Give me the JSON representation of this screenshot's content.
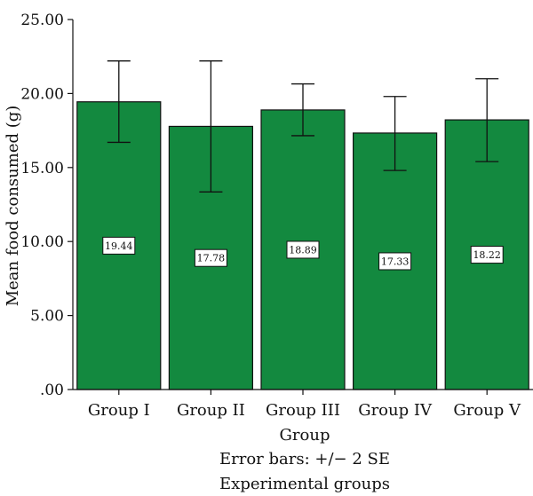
{
  "chart_data": {
    "type": "bar",
    "xlabel": "Group",
    "ylabel": "Mean food consumed (g)",
    "categories": [
      "Group I",
      "Group II",
      "Group III",
      "Group IV",
      "Group V"
    ],
    "values": [
      19.44,
      17.78,
      18.89,
      17.33,
      18.22
    ],
    "value_labels": [
      "19.44",
      "17.78",
      "18.89",
      "17.33",
      "18.22"
    ],
    "error_bars": {
      "label": "Error bars: +/− 2 SE",
      "upper": [
        22.2,
        22.2,
        20.65,
        19.8,
        21.0
      ],
      "lower": [
        16.7,
        13.35,
        17.15,
        14.8,
        15.4
      ]
    },
    "caption": "Experimental groups",
    "ylim": [
      0,
      25
    ],
    "yticks": [
      0,
      5,
      10,
      15,
      20,
      25
    ],
    "ytick_labels": [
      ".00",
      "5.00",
      "10.00",
      "15.00",
      "20.00",
      "25.00"
    ],
    "grid": false,
    "legend": "none",
    "colors": {
      "bar_fill": "#13893f",
      "bar_stroke": "#111111",
      "axis": "#111111",
      "label_box": "#ffffff"
    }
  }
}
